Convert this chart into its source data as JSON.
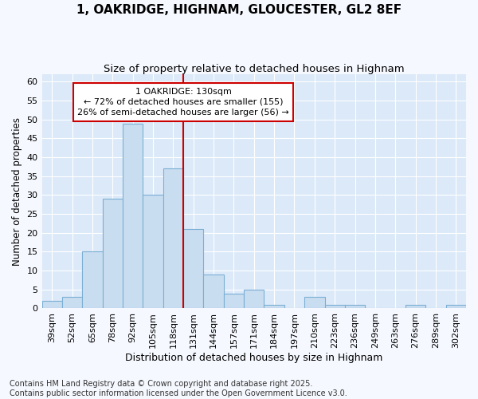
{
  "title": "1, OAKRIDGE, HIGHNAM, GLOUCESTER, GL2 8EF",
  "subtitle": "Size of property relative to detached houses in Highnam",
  "xlabel": "Distribution of detached houses by size in Highnam",
  "ylabel": "Number of detached properties",
  "categories": [
    "39sqm",
    "52sqm",
    "65sqm",
    "78sqm",
    "92sqm",
    "105sqm",
    "118sqm",
    "131sqm",
    "144sqm",
    "157sqm",
    "171sqm",
    "184sqm",
    "197sqm",
    "210sqm",
    "223sqm",
    "236sqm",
    "249sqm",
    "263sqm",
    "276sqm",
    "289sqm",
    "302sqm"
  ],
  "values": [
    2,
    3,
    15,
    29,
    49,
    30,
    37,
    21,
    9,
    4,
    5,
    1,
    0,
    3,
    1,
    1,
    0,
    0,
    1,
    0,
    1
  ],
  "bar_color": "#c9ddf0",
  "bar_edge_color": "#7bafd4",
  "fig_bg_color": "#f5f8fe",
  "plot_bg_color": "#dce9f8",
  "grid_color": "#ffffff",
  "vline_color": "#cc0000",
  "annotation_text": "1 OAKRIDGE: 130sqm\n← 72% of detached houses are smaller (155)\n26% of semi-detached houses are larger (56) →",
  "annotation_box_edge": "#cc0000",
  "ylim": [
    0,
    62
  ],
  "yticks": [
    0,
    5,
    10,
    15,
    20,
    25,
    30,
    35,
    40,
    45,
    50,
    55,
    60
  ],
  "footnote": "Contains HM Land Registry data © Crown copyright and database right 2025.\nContains public sector information licensed under the Open Government Licence v3.0.",
  "title_fontsize": 11,
  "subtitle_fontsize": 9.5,
  "xlabel_fontsize": 9,
  "ylabel_fontsize": 8.5,
  "tick_fontsize": 8,
  "annotation_fontsize": 8,
  "footnote_fontsize": 7
}
